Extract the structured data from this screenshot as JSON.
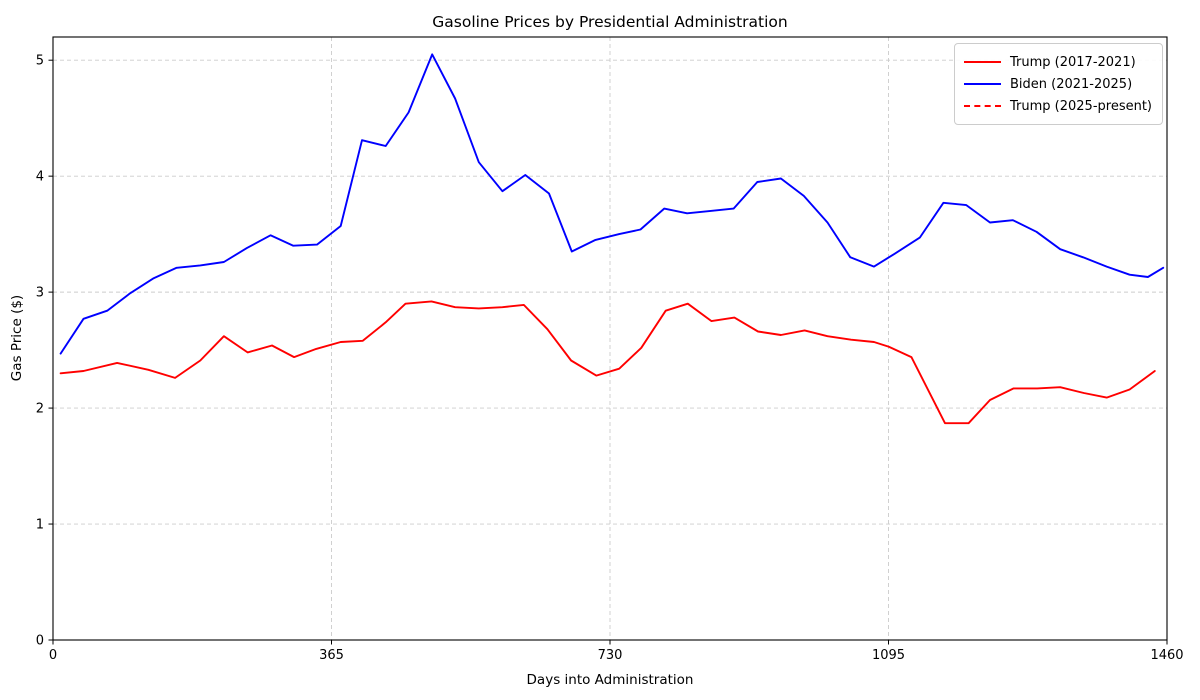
{
  "chart_data": {
    "type": "line",
    "title": "Gasoline Prices by Presidential Administration",
    "xlabel": "Days into Administration",
    "ylabel": "Gas Price ($)",
    "xlim": [
      0,
      1460
    ],
    "ylim": [
      0,
      5.2
    ],
    "xticks": [
      0,
      365,
      730,
      1095,
      1460
    ],
    "yticks": [
      0,
      1,
      2,
      3,
      4,
      5
    ],
    "grid": true,
    "grid_color": "#cccccc",
    "axis_color": "#000000",
    "legend_position": "upper right",
    "series": [
      {
        "id": "trump-2017",
        "name": "Trump (2017-2021)",
        "color": "#ff0000",
        "style": "solid",
        "x": [
          10,
          40,
          84,
          125,
          160,
          193,
          224,
          255,
          287,
          316,
          345,
          377,
          406,
          436,
          462,
          496,
          527,
          558,
          589,
          617,
          648,
          679,
          712,
          742,
          771,
          803,
          832,
          863,
          893,
          924,
          954,
          985,
          1015,
          1046,
          1076,
          1095,
          1125,
          1169,
          1200,
          1228,
          1259,
          1290,
          1320,
          1351,
          1381,
          1411,
          1444
        ],
        "y": [
          2.3,
          2.32,
          2.39,
          2.33,
          2.26,
          2.41,
          2.62,
          2.48,
          2.54,
          2.44,
          2.51,
          2.57,
          2.58,
          2.74,
          2.9,
          2.92,
          2.87,
          2.86,
          2.87,
          2.89,
          2.68,
          2.41,
          2.28,
          2.34,
          2.52,
          2.84,
          2.9,
          2.75,
          2.78,
          2.66,
          2.63,
          2.67,
          2.62,
          2.59,
          2.57,
          2.53,
          2.44,
          1.87,
          1.87,
          2.07,
          2.17,
          2.17,
          2.18,
          2.13,
          2.09,
          2.16,
          2.32
        ]
      },
      {
        "id": "biden-2021",
        "name": "Biden (2021-2025)",
        "color": "#0000ff",
        "style": "solid",
        "x": [
          10,
          40,
          71,
          101,
          132,
          162,
          193,
          224,
          254,
          285,
          315,
          346,
          377,
          405,
          436,
          466,
          497,
          527,
          558,
          589,
          619,
          650,
          680,
          711,
          742,
          770,
          801,
          831,
          862,
          892,
          923,
          954,
          984,
          1015,
          1045,
          1076,
          1103,
          1136,
          1167,
          1197,
          1228,
          1258,
          1289,
          1320,
          1350,
          1381,
          1411,
          1435,
          1455
        ],
        "y": [
          2.47,
          2.77,
          2.84,
          2.99,
          3.12,
          3.21,
          3.23,
          3.26,
          3.38,
          3.49,
          3.4,
          3.41,
          3.57,
          4.31,
          4.26,
          4.55,
          5.05,
          4.67,
          4.12,
          3.87,
          4.01,
          3.85,
          3.35,
          3.45,
          3.5,
          3.54,
          3.72,
          3.68,
          3.7,
          3.72,
          3.95,
          3.98,
          3.83,
          3.6,
          3.3,
          3.22,
          3.33,
          3.47,
          3.77,
          3.75,
          3.6,
          3.62,
          3.52,
          3.37,
          3.3,
          3.22,
          3.15,
          3.13,
          3.21
        ]
      },
      {
        "id": "trump-2025",
        "name": "Trump (2025-present)",
        "color": "#ff0000",
        "style": "dashed",
        "x": [],
        "y": []
      }
    ]
  }
}
